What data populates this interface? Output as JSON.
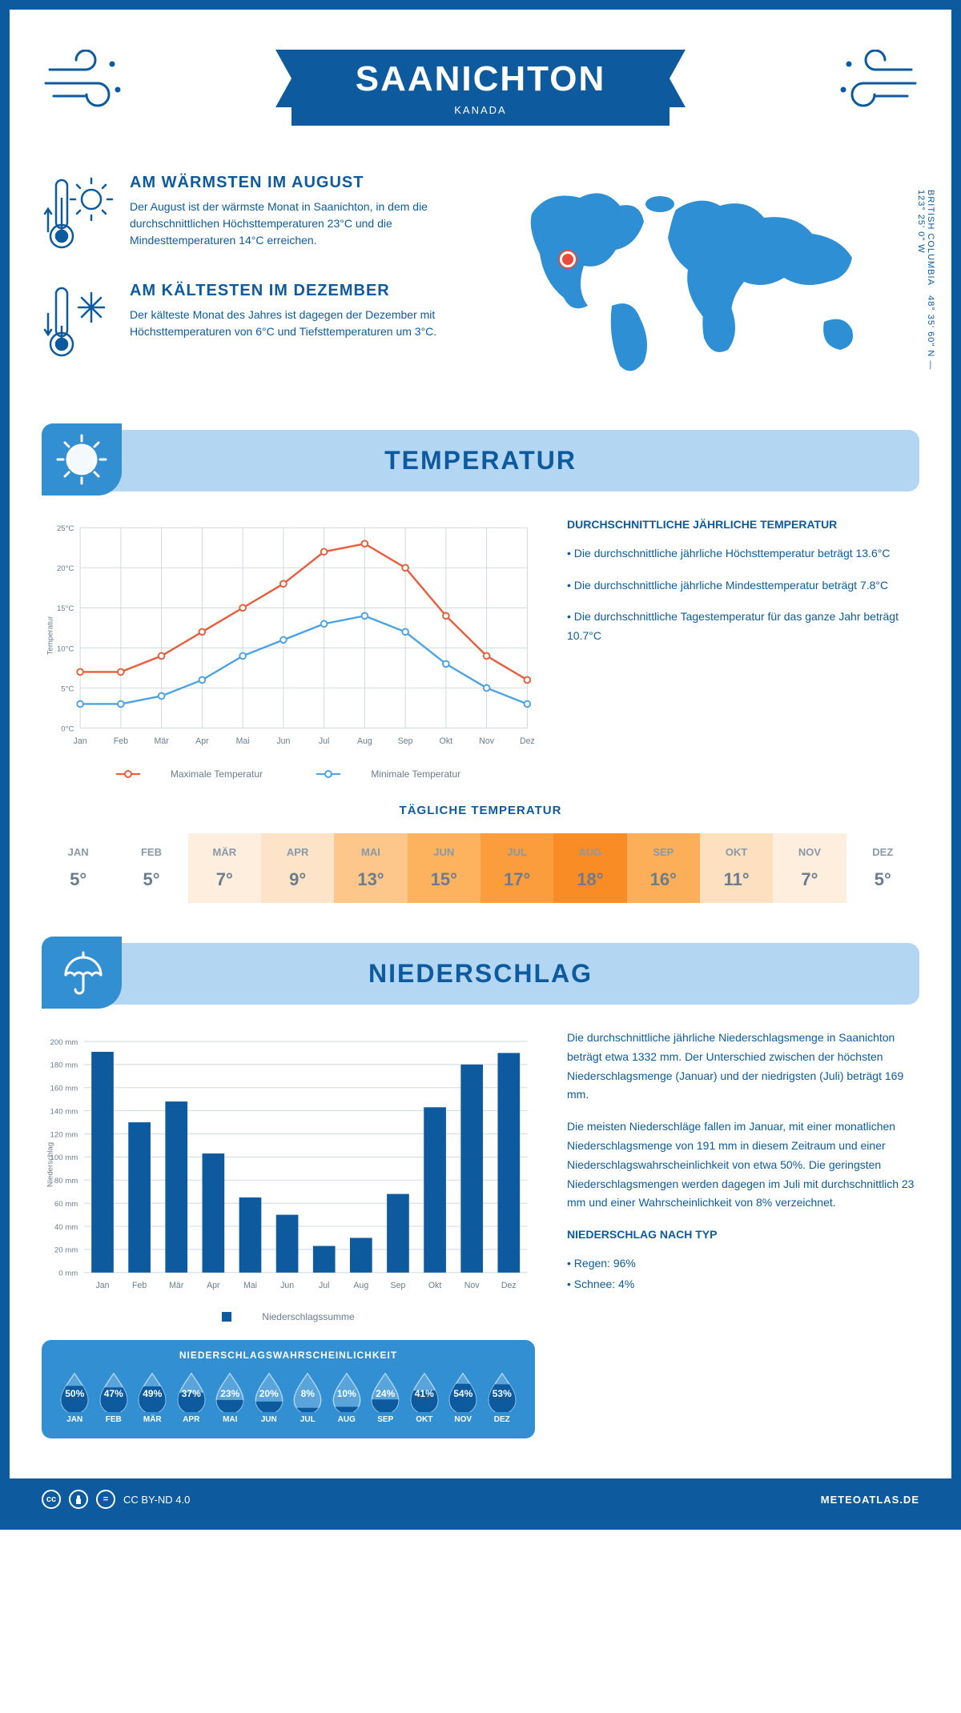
{
  "header": {
    "title": "SAANICHTON",
    "subtitle": "KANADA"
  },
  "coords": "48° 35' 60\" N — 123° 25' 0\" W",
  "region": "BRITISH COLUMBIA",
  "map": {
    "marker_left_pct": 15,
    "marker_top_pct": 36
  },
  "facts": {
    "hot": {
      "title": "AM WÄRMSTEN IM AUGUST",
      "text": "Der August ist der wärmste Monat in Saanichton, in dem die durchschnittlichen Höchsttemperaturen 23°C und die Mindesttemperaturen 14°C erreichen."
    },
    "cold": {
      "title": "AM KÄLTESTEN IM DEZEMBER",
      "text": "Der kälteste Monat des Jahres ist dagegen der Dezember mit Höchsttemperaturen von 6°C und Tiefsttemperaturen um 3°C."
    }
  },
  "months": [
    "Jan",
    "Feb",
    "Mär",
    "Apr",
    "Mai",
    "Jun",
    "Jul",
    "Aug",
    "Sep",
    "Okt",
    "Nov",
    "Dez"
  ],
  "months_upper": [
    "JAN",
    "FEB",
    "MÄR",
    "APR",
    "MAI",
    "JUN",
    "JUL",
    "AUG",
    "SEP",
    "OKT",
    "NOV",
    "DEZ"
  ],
  "temperature": {
    "section_title": "TEMPERATUR",
    "chart": {
      "type": "line",
      "y_label": "Temperatur",
      "y_min": 0,
      "y_max": 25,
      "y_step": 5,
      "max_series": {
        "label": "Maximale Temperatur",
        "color": "#e85d3d",
        "values": [
          7,
          7,
          9,
          12,
          15,
          18,
          22,
          23,
          20,
          14,
          9,
          6
        ]
      },
      "min_series": {
        "label": "Minimale Temperatur",
        "color": "#4ba3e3",
        "values": [
          3,
          3,
          4,
          6,
          9,
          11,
          13,
          14,
          12,
          8,
          5,
          3
        ]
      },
      "grid_color": "#d0d8e0",
      "background": "#ffffff"
    },
    "annual": {
      "title": "DURCHSCHNITTLICHE JÄHRLICHE TEMPERATUR",
      "line1": "• Die durchschnittliche jährliche Höchsttemperatur beträgt 13.6°C",
      "line2": "• Die durchschnittliche jährliche Mindesttemperatur beträgt 7.8°C",
      "line3": "• Die durchschnittliche Tagestemperatur für das ganze Jahr beträgt 10.7°C"
    },
    "daily": {
      "title": "TÄGLICHE TEMPERATUR",
      "values": [
        "5°",
        "5°",
        "7°",
        "9°",
        "13°",
        "15°",
        "17°",
        "18°",
        "16°",
        "11°",
        "7°",
        "5°"
      ],
      "colors": [
        "#ffffff",
        "#ffffff",
        "#fdeedd",
        "#fde4c8",
        "#fdc68a",
        "#fdb35e",
        "#fb9c3d",
        "#f98c25",
        "#fdae58",
        "#fde0c0",
        "#fdeedd",
        "#ffffff"
      ]
    }
  },
  "precip": {
    "section_title": "NIEDERSCHLAG",
    "chart": {
      "type": "bar",
      "y_label": "Niederschlag",
      "y_min": 0,
      "y_max": 200,
      "y_step": 20,
      "values": [
        191,
        130,
        148,
        103,
        65,
        50,
        23,
        30,
        68,
        143,
        180,
        190
      ],
      "bar_color": "#0d5a9e",
      "grid_color": "#d0d8e0",
      "legend": "Niederschlagssumme"
    },
    "desc": {
      "p1": "Die durchschnittliche jährliche Niederschlagsmenge in Saanichton beträgt etwa 1332 mm. Der Unterschied zwischen der höchsten Niederschlagsmenge (Januar) und der niedrigsten (Juli) beträgt 169 mm.",
      "p2": "Die meisten Niederschläge fallen im Januar, mit einer monatlichen Niederschlagsmenge von 191 mm in diesem Zeitraum und einer Niederschlagswahrscheinlichkeit von etwa 50%. Die geringsten Niederschlagsmengen werden dagegen im Juli mit durchschnittlich 23 mm und einer Wahrscheinlichkeit von 8% verzeichnet.",
      "type_title": "NIEDERSCHLAG NACH TYP",
      "type1": "• Regen: 96%",
      "type2": "• Schnee: 4%"
    },
    "prob": {
      "title": "NIEDERSCHLAGSWAHRSCHEINLICHKEIT",
      "values": [
        50,
        47,
        49,
        37,
        23,
        20,
        8,
        10,
        24,
        41,
        54,
        53
      ],
      "fill_color": "#0d5a9e",
      "outline_color": "#b3d6f2"
    }
  },
  "footer": {
    "license": "CC BY-ND 4.0",
    "site": "METEOATLAS.DE"
  },
  "colors": {
    "primary": "#0d5a9e",
    "light": "#b3d6f2",
    "mid": "#328fd1"
  }
}
